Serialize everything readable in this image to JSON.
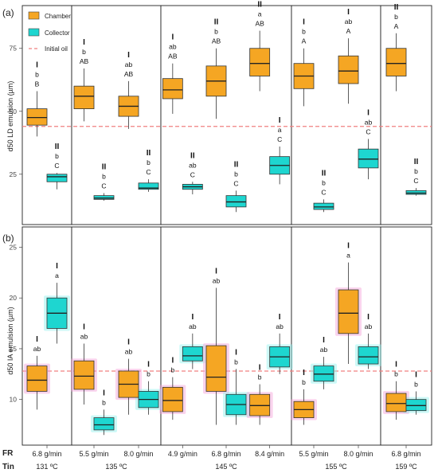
{
  "chart_data": {
    "type": "box",
    "row_labels": [
      "LD",
      "IA"
    ],
    "panels": [
      {
        "id": "a",
        "tag": "(a)",
        "ylabel": "d50 LD emulsion (µm)",
        "ylim": [
          5,
          92
        ],
        "yticks": [
          25,
          50,
          75
        ],
        "reference_line": 44,
        "groups": [
          {
            "key": "0c",
            "group": 0,
            "pos": 0,
            "series": "Chamber",
            "min": 40,
            "q1": 44.5,
            "median": 47.5,
            "q3": 51,
            "max": 58,
            "labels": [
              "I",
              "b",
              "B"
            ]
          },
          {
            "key": "0l",
            "group": 0,
            "pos": 0,
            "series": "Collector",
            "min": 19,
            "q1": 22,
            "median": 24,
            "q3": 25,
            "max": 25.5,
            "labels": [
              "II",
              "b",
              "C"
            ]
          },
          {
            "key": "1c",
            "group": 1,
            "pos": 0,
            "series": "Chamber",
            "min": 46,
            "q1": 51,
            "median": 56,
            "q3": 60,
            "max": 67,
            "labels": [
              "I",
              "b",
              "AB"
            ]
          },
          {
            "key": "1l",
            "group": 1,
            "pos": 0,
            "series": "Collector",
            "min": 14.5,
            "q1": 15,
            "median": 15.5,
            "q3": 16.5,
            "max": 17.5,
            "labels": [
              "II",
              "b",
              "C"
            ]
          },
          {
            "key": "1c2",
            "group": 1,
            "pos": 1,
            "series": "Chamber",
            "min": 43,
            "q1": 48,
            "median": 52,
            "q3": 56,
            "max": 62,
            "labels": [
              "I",
              "ab",
              "AB"
            ]
          },
          {
            "key": "1l2",
            "group": 1,
            "pos": 1,
            "series": "Collector",
            "min": 18,
            "q1": 19,
            "median": 19.5,
            "q3": 21.5,
            "max": 23,
            "labels": [
              "II",
              "b",
              "C"
            ]
          },
          {
            "key": "2c",
            "group": 2,
            "pos": 0,
            "series": "Chamber",
            "min": 49,
            "q1": 55,
            "median": 58.5,
            "q3": 63,
            "max": 69,
            "labels": [
              "I",
              "ab",
              "AB"
            ]
          },
          {
            "key": "2l",
            "group": 2,
            "pos": 0,
            "series": "Collector",
            "min": 17,
            "q1": 19,
            "median": 20,
            "q3": 21,
            "max": 22,
            "labels": [
              "II",
              "ab",
              "C"
            ]
          },
          {
            "key": "2c2",
            "group": 2,
            "pos": 1,
            "series": "Chamber",
            "min": 47,
            "q1": 56,
            "median": 62,
            "q3": 68,
            "max": 75,
            "labels": [
              "II",
              "b",
              "AB"
            ]
          },
          {
            "key": "2l2",
            "group": 2,
            "pos": 1,
            "series": "Collector",
            "min": 10,
            "q1": 12,
            "median": 14,
            "q3": 16.5,
            "max": 18.5,
            "labels": [
              "II",
              "b",
              "C"
            ]
          },
          {
            "key": "2c3",
            "group": 2,
            "pos": 2,
            "series": "Chamber",
            "min": 58,
            "q1": 64,
            "median": 69,
            "q3": 75,
            "max": 82,
            "labels": [
              "II",
              "a",
              "AB"
            ]
          },
          {
            "key": "2l3",
            "group": 2,
            "pos": 2,
            "series": "Collector",
            "min": 21,
            "q1": 25,
            "median": 28.5,
            "q3": 32,
            "max": 36,
            "labels": [
              "I",
              "a",
              "C"
            ]
          },
          {
            "key": "3c",
            "group": 3,
            "pos": 0,
            "series": "Chamber",
            "min": 52,
            "q1": 59,
            "median": 64,
            "q3": 69,
            "max": 75,
            "labels": [
              "I",
              "b",
              "A"
            ]
          },
          {
            "key": "3l",
            "group": 3,
            "pos": 0,
            "series": "Collector",
            "min": 10,
            "q1": 11,
            "median": 12,
            "q3": 13.5,
            "max": 15,
            "labels": [
              "II",
              "b",
              "C"
            ]
          },
          {
            "key": "3c2",
            "group": 3,
            "pos": 1,
            "series": "Chamber",
            "min": 53,
            "q1": 61,
            "median": 66,
            "q3": 72,
            "max": 79,
            "labels": [
              "I",
              "ab",
              "A"
            ]
          },
          {
            "key": "3l2",
            "group": 3,
            "pos": 1,
            "series": "Collector",
            "min": 23,
            "q1": 27.5,
            "median": 31,
            "q3": 35,
            "max": 39,
            "labels": [
              "I",
              "ab",
              "C"
            ]
          },
          {
            "key": "4c",
            "group": 4,
            "pos": 0,
            "series": "Chamber",
            "min": 58,
            "q1": 64,
            "median": 69,
            "q3": 75,
            "max": 81,
            "labels": [
              "II",
              "b",
              "A"
            ]
          },
          {
            "key": "4l",
            "group": 4,
            "pos": 0,
            "series": "Collector",
            "min": 16.5,
            "q1": 17,
            "median": 17.5,
            "q3": 18.5,
            "max": 19.5,
            "labels": [
              "II",
              "b",
              "C"
            ]
          }
        ]
      },
      {
        "id": "b",
        "tag": "(b)",
        "ylabel": "d50 IA emulsion (µm)",
        "ylim": [
          5.5,
          27
        ],
        "yticks": [
          10,
          15,
          20,
          25
        ],
        "reference_line": 12.8,
        "groups": [
          {
            "key": "0c",
            "group": 0,
            "pos": 0,
            "series": "Chamber",
            "min": 9,
            "q1": 10.8,
            "median": 11.9,
            "q3": 13.3,
            "max": 14.3,
            "labels": [
              "I",
              "ab"
            ]
          },
          {
            "key": "0l",
            "group": 0,
            "pos": 0,
            "series": "Collector",
            "min": 15.5,
            "q1": 17,
            "median": 18.5,
            "q3": 20,
            "max": 21.5,
            "labels": [
              "I",
              "a"
            ]
          },
          {
            "key": "1c",
            "group": 1,
            "pos": 0,
            "series": "Chamber",
            "min": 9.5,
            "q1": 11,
            "median": 12.3,
            "q3": 13.8,
            "max": 15.5,
            "labels": [
              "I",
              "ab"
            ]
          },
          {
            "key": "1l",
            "group": 1,
            "pos": 0,
            "series": "Collector",
            "min": 6.5,
            "q1": 7,
            "median": 7.5,
            "q3": 8.2,
            "max": 9,
            "labels": [
              "I",
              "b"
            ]
          },
          {
            "key": "1c2",
            "group": 1,
            "pos": 1,
            "series": "Chamber",
            "min": 8.5,
            "q1": 10.2,
            "median": 11.5,
            "q3": 12.8,
            "max": 14,
            "labels": [
              "I",
              "ab"
            ]
          },
          {
            "key": "1l2",
            "group": 1,
            "pos": 1,
            "series": "Collector",
            "min": 8.5,
            "q1": 9.2,
            "median": 10,
            "q3": 10.8,
            "max": 11.8,
            "labels": [
              "I",
              "b"
            ]
          },
          {
            "key": "2c",
            "group": 2,
            "pos": 0,
            "series": "Chamber",
            "min": 8,
            "q1": 8.8,
            "median": 9.9,
            "q3": 11.2,
            "max": 12.2,
            "labels": [
              "I",
              "b"
            ]
          },
          {
            "key": "2l",
            "group": 2,
            "pos": 0,
            "series": "Collector",
            "min": 13,
            "q1": 13.8,
            "median": 14.3,
            "q3": 15.2,
            "max": 16.5,
            "labels": [
              "I",
              "ab"
            ]
          },
          {
            "key": "2c2",
            "group": 2,
            "pos": 1,
            "series": "Chamber",
            "min": 7.5,
            "q1": 10.8,
            "median": 12.2,
            "q3": 15.3,
            "max": 21,
            "labels": [
              "I",
              "ab"
            ]
          },
          {
            "key": "2l2",
            "group": 2,
            "pos": 1,
            "series": "Collector",
            "min": 7.5,
            "q1": 8.5,
            "median": 9.5,
            "q3": 10.5,
            "max": 13,
            "labels": [
              "I",
              "b"
            ]
          },
          {
            "key": "2c3",
            "group": 2,
            "pos": 2,
            "series": "Chamber",
            "min": 7.5,
            "q1": 8.4,
            "median": 9.4,
            "q3": 10.5,
            "max": 11.5,
            "labels": [
              "I",
              "b"
            ]
          },
          {
            "key": "2l3",
            "group": 2,
            "pos": 2,
            "series": "Collector",
            "min": 12.5,
            "q1": 13.2,
            "median": 14.2,
            "q3": 15.2,
            "max": 16.5,
            "labels": [
              "I",
              "ab"
            ]
          },
          {
            "key": "3c",
            "group": 3,
            "pos": 0,
            "series": "Chamber",
            "min": 7.5,
            "q1": 8.2,
            "median": 9,
            "q3": 9.8,
            "max": 11,
            "labels": [
              "I",
              "b"
            ]
          },
          {
            "key": "3l",
            "group": 3,
            "pos": 0,
            "series": "Collector",
            "min": 11,
            "q1": 11.8,
            "median": 12.5,
            "q3": 13.3,
            "max": 14.2,
            "labels": [
              "I",
              "ab"
            ]
          },
          {
            "key": "3c2",
            "group": 3,
            "pos": 1,
            "series": "Chamber",
            "min": 13.5,
            "q1": 16.5,
            "median": 18.5,
            "q3": 20.8,
            "max": 23.5,
            "labels": [
              "I",
              "a"
            ]
          },
          {
            "key": "3l2",
            "group": 3,
            "pos": 1,
            "series": "Collector",
            "min": 13,
            "q1": 13.5,
            "median": 14.2,
            "q3": 15.2,
            "max": 16.5,
            "labels": [
              "I",
              "ab"
            ]
          },
          {
            "key": "4c",
            "group": 4,
            "pos": 0,
            "series": "Chamber",
            "min": 8,
            "q1": 8.8,
            "median": 9.6,
            "q3": 10.6,
            "max": 11.8,
            "labels": [
              "I",
              "b"
            ]
          },
          {
            "key": "4l",
            "group": 4,
            "pos": 0,
            "series": "Collector",
            "min": 8.5,
            "q1": 8.9,
            "median": 9.4,
            "q3": 10,
            "max": 10.8,
            "labels": [
              "I",
              "b"
            ]
          }
        ]
      }
    ],
    "legend": {
      "placement": "top-left",
      "items": [
        {
          "name": "Chamber",
          "color": "#f5a623"
        },
        {
          "name": "Collector",
          "color": "#1ed6d0"
        },
        {
          "name": "Initial oil",
          "color": "#f08080"
        }
      ]
    },
    "fr_label": "FR",
    "tin_label": "Tin",
    "temperature_groups": [
      {
        "tin": "131 ºC",
        "fr": [
          "6.8 g/min"
        ]
      },
      {
        "tin": "135 ºC",
        "fr": [
          "5.5 g/min",
          "8.0 g/min"
        ]
      },
      {
        "tin": "145 ºC",
        "fr": [
          "4.9 g/min",
          "6.8 g/min",
          "8.4 g/min"
        ]
      },
      {
        "tin": "155 ºC",
        "fr": [
          "5.5 g/min",
          "8.0 g/min"
        ]
      },
      {
        "tin": "159 ºC",
        "fr": [
          "6.8 g/min"
        ]
      }
    ],
    "colors": {
      "chamber": "#f5a623",
      "collector": "#1ed6d0",
      "reference": "#f08080",
      "chamber_glow": "#f3a0d8",
      "collector_glow": "#8ef2ee"
    }
  }
}
